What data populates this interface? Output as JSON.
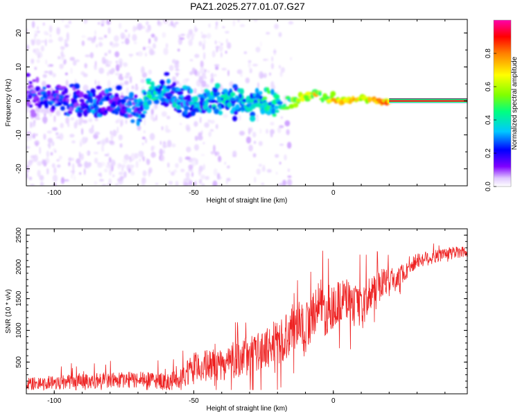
{
  "title": "PAZ1.2025.277.01.07.G27",
  "chart_data": [
    {
      "type": "heatmap",
      "title": "PAZ1.2025.277.01.07.G27",
      "xlabel": "Height of straight line (km)",
      "ylabel": "Frequency (Hz)",
      "xlim": [
        -110,
        48
      ],
      "ylim": [
        -25,
        24
      ],
      "xticks": [
        -100,
        -50,
        0
      ],
      "yticks": [
        -20,
        -10,
        0,
        10,
        20
      ],
      "colorbar": {
        "label": "Normalized spectral amplitude",
        "range": [
          0,
          1
        ],
        "ticks": [
          0.0,
          0.2,
          0.4,
          0.6,
          0.8
        ],
        "colormap": [
          "#ffffff",
          "#e0c8ff",
          "#8000ff",
          "#0000ff",
          "#00c8ff",
          "#00ff80",
          "#80ff00",
          "#ffff00",
          "#ff8000",
          "#ff0000",
          "#ff00aa"
        ]
      },
      "ridge": {
        "description": "dominant frequency track",
        "x": [
          -110,
          -100,
          -95,
          -90,
          -85,
          -80,
          -75,
          -70,
          -66,
          -60,
          -55,
          -50,
          -45,
          -40,
          -35,
          -30,
          -25,
          -20,
          -15,
          -10,
          -7,
          -3,
          0,
          5,
          10,
          15,
          20,
          30,
          40,
          48
        ],
        "y": [
          1.5,
          0.5,
          0.5,
          -0.5,
          0,
          -1,
          -1.5,
          -3,
          3,
          2,
          1,
          -1,
          0,
          0.5,
          0,
          -1,
          0,
          -1,
          0,
          1,
          2,
          1.5,
          0,
          0,
          1,
          0,
          0,
          0,
          0,
          0
        ],
        "amplitude": [
          0.15,
          0.2,
          0.2,
          0.25,
          0.25,
          0.2,
          0.2,
          0.25,
          0.4,
          0.35,
          0.3,
          0.3,
          0.35,
          0.4,
          0.35,
          0.35,
          0.45,
          0.5,
          0.55,
          0.7,
          0.75,
          0.7,
          0.8,
          0.8,
          0.85,
          0.85,
          0.95,
          1.0,
          1.0,
          1.0
        ]
      }
    },
    {
      "type": "line",
      "xlabel": "Height of straight line (km)",
      "ylabel": "SNR (10 * v/v)",
      "xlim": [
        -110,
        48
      ],
      "ylim": [
        0,
        2600
      ],
      "xticks": [
        -100,
        -50,
        0
      ],
      "yticks": [
        500,
        1000,
        1500,
        2000,
        2500
      ],
      "color": "#ee2222",
      "x": [
        -110,
        -100,
        -90,
        -80,
        -70,
        -60,
        -55,
        -50,
        -45,
        -40,
        -35,
        -30,
        -25,
        -20,
        -15,
        -12,
        -10,
        -5,
        -3,
        0,
        5,
        10,
        15,
        20,
        25,
        30,
        35,
        40,
        48
      ],
      "y": [
        150,
        180,
        200,
        220,
        220,
        200,
        220,
        400,
        450,
        450,
        550,
        600,
        700,
        800,
        1000,
        1200,
        1000,
        1500,
        1300,
        1400,
        1500,
        1300,
        1700,
        1800,
        1900,
        2100,
        2150,
        2200,
        2250
      ],
      "noise_amplitude": [
        100,
        120,
        120,
        130,
        130,
        130,
        150,
        250,
        250,
        250,
        300,
        300,
        300,
        350,
        400,
        350,
        450,
        350,
        400,
        350,
        350,
        350,
        250,
        200,
        150,
        120,
        120,
        100,
        100
      ]
    }
  ]
}
